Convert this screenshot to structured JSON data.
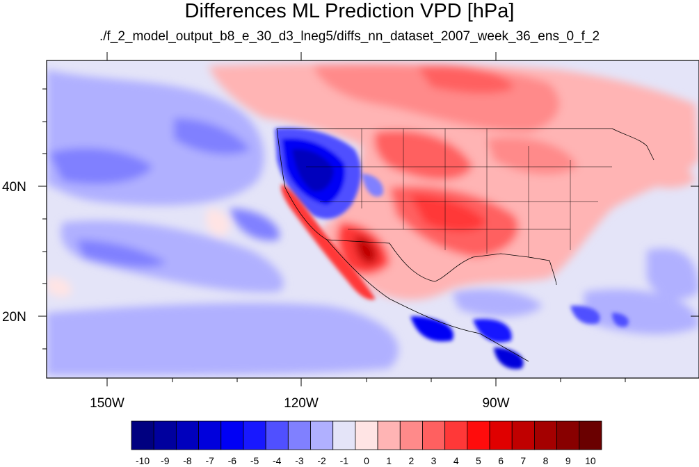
{
  "title": "Differences ML Prediction VPD [hPa]",
  "subtitle": "./f_2_model_output_b8_e_30_d3_lneg5/diffs_nn_dataset_2007_week_36_ens_0_f_2",
  "lon_labels": [
    "150W",
    "120W",
    "90W"
  ],
  "lat_labels": [
    "40N",
    "20N"
  ],
  "colorbar": {
    "labels": [
      "-10",
      "-9",
      "-8",
      "-7",
      "-6",
      "-5",
      "-4",
      "-3",
      "-2",
      "-1",
      "0",
      "1",
      "2",
      "3",
      "4",
      "5",
      "6",
      "7",
      "8",
      "9",
      "10"
    ],
    "colors": [
      "#000080",
      "#00009e",
      "#0000bd",
      "#0000dc",
      "#0000f5",
      "#1818ff",
      "#5050ff",
      "#8080ff",
      "#b0b0ff",
      "#e4e4f8",
      "#ffe4e4",
      "#ffb4b4",
      "#ff8a8a",
      "#ff6060",
      "#ff3838",
      "#ff0c0c",
      "#e00000",
      "#c00000",
      "#a40000",
      "#880000",
      "#6a0000"
    ]
  },
  "colors": {
    "background": "#ffffff",
    "frame": "#000000",
    "ocean_base": "#e4e4f8",
    "land_border": "#000000"
  }
}
